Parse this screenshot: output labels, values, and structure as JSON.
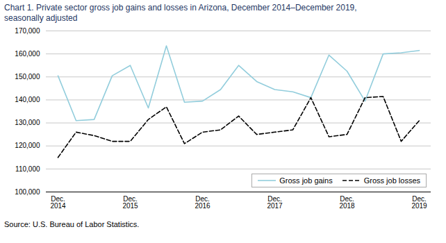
{
  "chart_data": {
    "type": "line",
    "title": "Chart 1. Private sector gross  job gains and losses  in Arizona, December 2014–December 2019,",
    "subtitle": "seasonally adjusted",
    "caption": "Source: U.S. Bureau of Labor Statistics.",
    "categories": [
      "Dec.\n2014",
      null,
      null,
      null,
      "Dec.\n2015",
      null,
      null,
      null,
      "Dec.\n2016",
      null,
      null,
      null,
      "Dec.\n2017",
      null,
      null,
      null,
      "Dec.\n2018",
      null,
      null,
      null,
      "Dec.\n2019"
    ],
    "series": [
      {
        "name": "Gross job gains",
        "color": "#92CDDC",
        "line_style": "solid",
        "values": [
          150500,
          131000,
          131500,
          150500,
          155000,
          136500,
          163500,
          139000,
          139500,
          144500,
          155000,
          148000,
          144500,
          143500,
          141000,
          159500,
          152500,
          139500,
          160000,
          160500,
          161500
        ]
      },
      {
        "name": "Gross job losses",
        "color": "#000000",
        "line_style": "dashed",
        "values": [
          115000,
          126000,
          124500,
          122000,
          122000,
          131500,
          137000,
          121000,
          126000,
          127000,
          133000,
          125000,
          126000,
          127000,
          141000,
          124000,
          125000,
          141000,
          141500,
          122000,
          131000
        ]
      }
    ],
    "ylim": [
      100000,
      170000
    ],
    "yticks": [
      {
        "value": 100000,
        "label": "100,000"
      },
      {
        "value": 110000,
        "label": "110,000"
      },
      {
        "value": 120000,
        "label": "120,000"
      },
      {
        "value": 130000,
        "label": "130,000"
      },
      {
        "value": 140000,
        "label": "140,000"
      },
      {
        "value": 150000,
        "label": "150,000"
      },
      {
        "value": 160000,
        "label": "160,000"
      },
      {
        "value": 170000,
        "label": "170,000"
      }
    ],
    "grid": true,
    "legend": "lower right"
  }
}
